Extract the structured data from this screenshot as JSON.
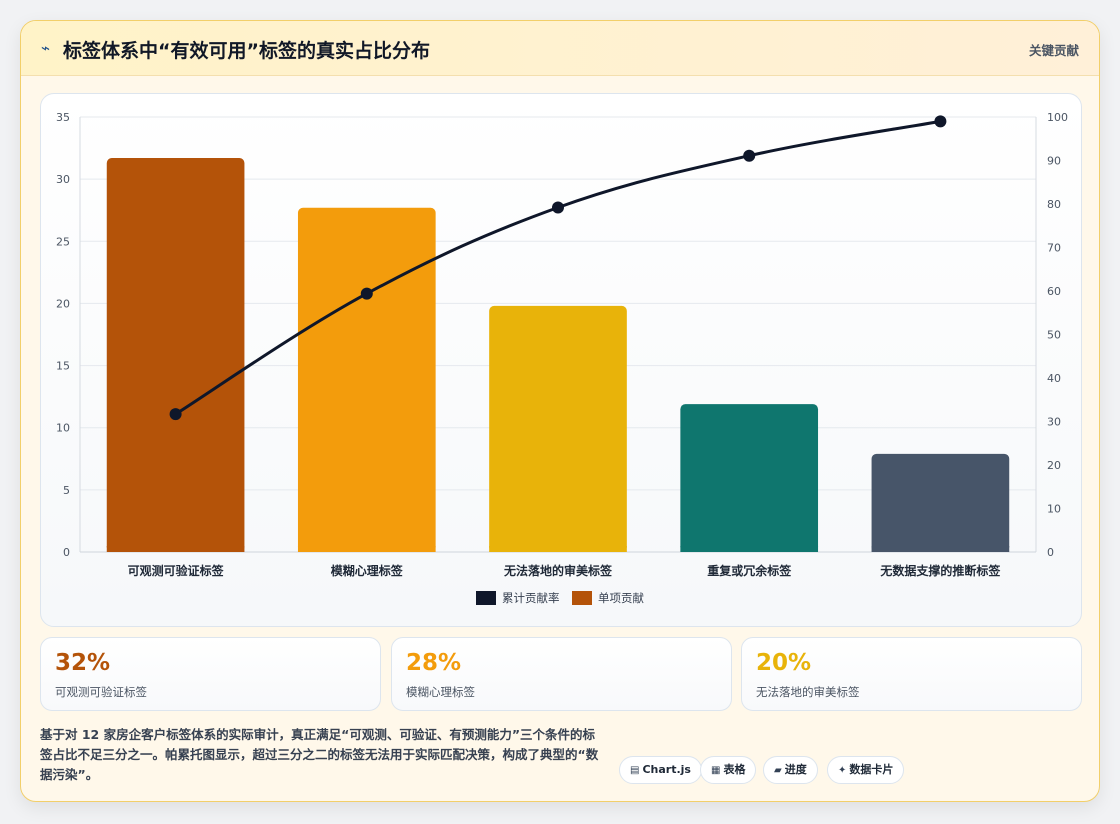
{
  "header": {
    "icon": "chart-icon",
    "title": "标签体系中“有效可用”标签的真实占比分布",
    "tag": "关键贡献"
  },
  "chart_data": {
    "type": "bar",
    "categories": [
      "可观测可验证标签",
      "模糊心理标签",
      "无法落地的审美标签",
      "重复或冗余标签",
      "无数据支撑的推断标签"
    ],
    "series": [
      {
        "name": "单项贡献",
        "type": "bar",
        "axis": "left",
        "values": [
          31.7,
          27.7,
          19.8,
          11.9,
          7.9
        ],
        "colors": [
          "#b45309",
          "#f39c0c",
          "#e8b30a",
          "#0f766e",
          "#475569"
        ]
      },
      {
        "name": "累计贡献率",
        "type": "line",
        "axis": "right",
        "values": [
          31.7,
          59.4,
          79.2,
          91.1,
          99.0
        ],
        "color": "#0f172a"
      }
    ],
    "ylim_left": [
      0,
      35
    ],
    "yticks_left": [
      0,
      5,
      10,
      15,
      20,
      25,
      30,
      35
    ],
    "ylim_right": [
      0,
      100
    ],
    "yticks_right": [
      0,
      10,
      20,
      30,
      40,
      50,
      60,
      70,
      80,
      90,
      100
    ],
    "legend_position": "bottom",
    "legend": [
      {
        "name": "累计贡献率",
        "color": "#0f172a"
      },
      {
        "name": "单项贡献",
        "color": "#b45309"
      }
    ],
    "grid": true
  },
  "stats": [
    {
      "value": "32%",
      "label": "可观测可验证标签",
      "color": "#b45309"
    },
    {
      "value": "28%",
      "label": "模糊心理标签",
      "color": "#f39c0c"
    },
    {
      "value": "20%",
      "label": "无法落地的审美标签",
      "color": "#e8b30a"
    }
  ],
  "summary": "基于对 12 家房企客户标签体系的实际审计，真正满足“可观测、可验证、有预测能力”三个条件的标签占比不足三分之一。帕累托图显示，超过三分之二的标签无法用于实际匹配决策，构成了典型的“数据污染”。",
  "badges": [
    {
      "icon": "▤",
      "icon_name": "chart-js-icon",
      "label": "Chart.js"
    },
    {
      "icon": "▦",
      "icon_name": "table-icon",
      "label": "表格"
    },
    {
      "icon": "▰",
      "icon_name": "progress-icon",
      "label": "进度"
    },
    {
      "icon": "✦",
      "icon_name": "data-card-icon",
      "label": "数据卡片"
    }
  ]
}
